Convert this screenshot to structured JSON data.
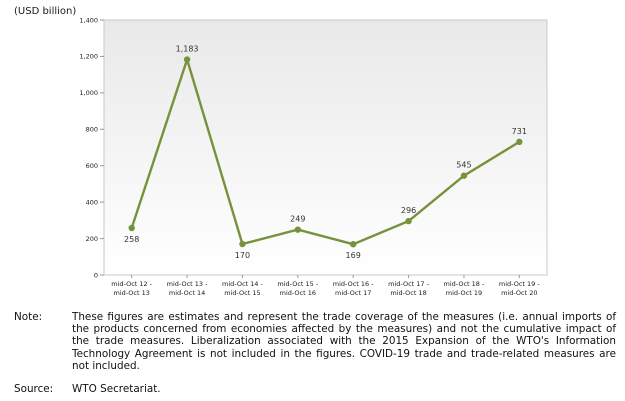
{
  "chart_data": {
    "type": "line",
    "unit_label": "(USD billion)",
    "categories": [
      [
        "mid-Oct 12 -",
        "mid-Oct 13"
      ],
      [
        "mid-Oct 13 -",
        "mid-Oct 14"
      ],
      [
        "mid-Oct 14 -",
        "mid-Oct 15"
      ],
      [
        "mid-Oct 15 -",
        "mid-Oct 16"
      ],
      [
        "mid-Oct 16 -",
        "mid-Oct 17"
      ],
      [
        "mid-Oct 17 -",
        "mid-Oct 18"
      ],
      [
        "mid-Oct 18 -",
        "mid-Oct 19"
      ],
      [
        "mid-Oct 19 -",
        "mid-Oct 20"
      ]
    ],
    "values": [
      258,
      1183,
      170,
      249,
      169,
      296,
      545,
      731
    ],
    "data_labels": [
      "258",
      "1,183",
      "170",
      "249",
      "169",
      "296",
      "545",
      "731"
    ],
    "label_position": [
      "below",
      "above",
      "below",
      "above",
      "below",
      "above",
      "above",
      "above"
    ],
    "ylim": [
      0,
      1400
    ],
    "yticks": [
      0,
      200,
      400,
      600,
      800,
      1000,
      1200,
      1400
    ],
    "ytick_labels": [
      "0",
      "200",
      "400",
      "600",
      "800",
      "1,000",
      "1,200",
      "1,400"
    ],
    "grid": false,
    "legend": "none",
    "colors": {
      "line": "#76923c",
      "plot_border": "#c8c8c8",
      "plot_background": "#f0f0f0"
    }
  },
  "note": {
    "key": "Note:",
    "text": "These figures are estimates and represent the trade coverage of the measures (i.e. annual imports of the products concerned from economies affected by the measures) and not the cumulative impact of the trade measures. Liberalization associated with the 2015 Expansion of the WTO's Information Technology Agreement is not included in the figures. COVID-19 trade and trade-related measures are not included."
  },
  "source": {
    "key": "Source:",
    "text": "WTO Secretariat."
  }
}
